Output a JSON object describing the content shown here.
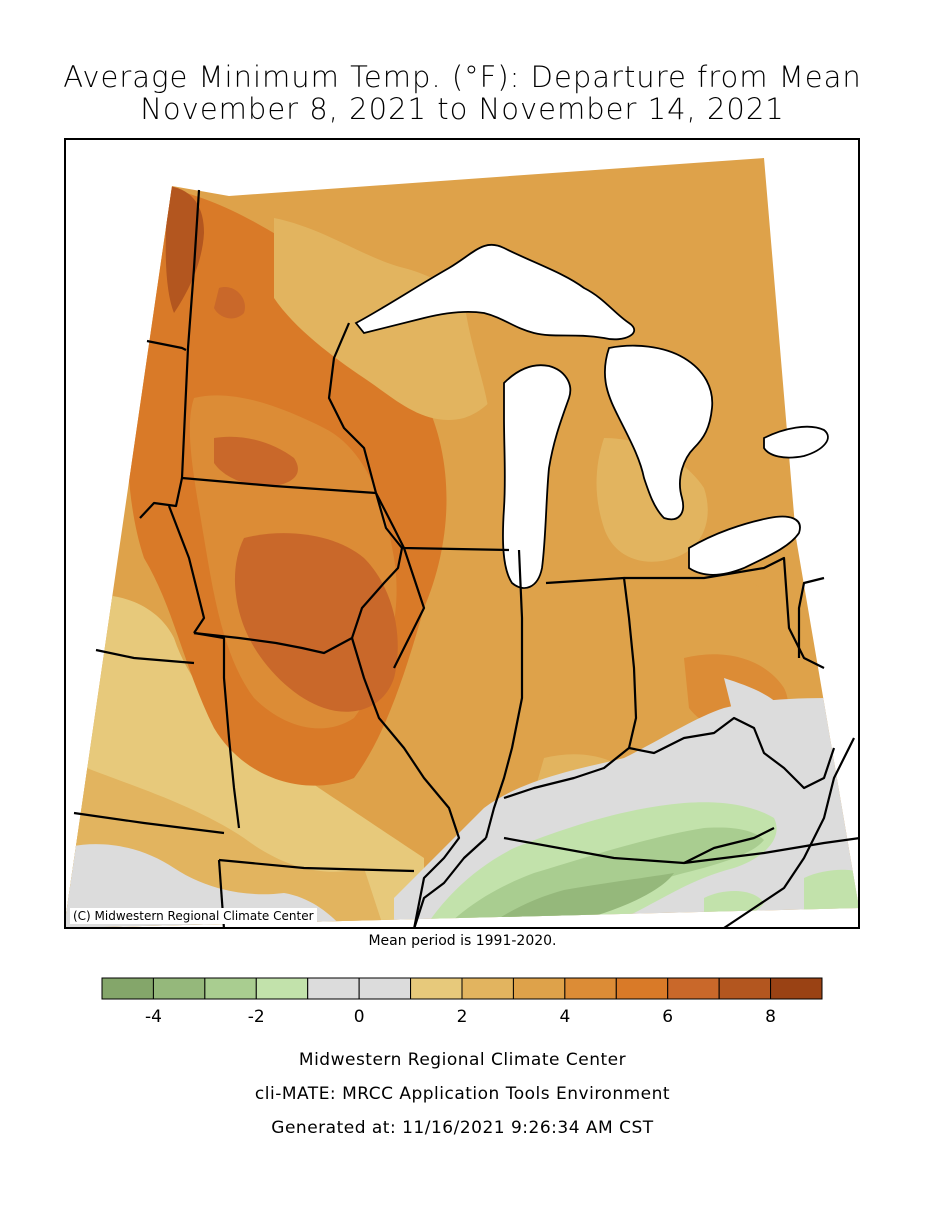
{
  "title_line1": "Average Minimum Temp. (°F): Departure from Mean",
  "title_line2": "November 8, 2021 to November 14, 2021",
  "credit": "(C) Midwestern Regional Climate Center",
  "mean_note": "Mean period is 1991-2020.",
  "legend": {
    "bins": [
      {
        "from": -5,
        "to": -4,
        "color": "#84a66a"
      },
      {
        "from": -4,
        "to": -3,
        "color": "#95b87b"
      },
      {
        "from": -3,
        "to": -2,
        "color": "#a9cd90"
      },
      {
        "from": -2,
        "to": -1,
        "color": "#c2e2ab"
      },
      {
        "from": -1,
        "to": 0,
        "color": "#dcdcdc"
      },
      {
        "from": 0,
        "to": 1,
        "color": "#dcdcdc"
      },
      {
        "from": 1,
        "to": 2,
        "color": "#e7c97b"
      },
      {
        "from": 2,
        "to": 3,
        "color": "#e2b45f"
      },
      {
        "from": 3,
        "to": 4,
        "color": "#dea24a"
      },
      {
        "from": 4,
        "to": 5,
        "color": "#dc8c36"
      },
      {
        "from": 5,
        "to": 6,
        "color": "#d97a28"
      },
      {
        "from": 6,
        "to": 7,
        "color": "#c9682a"
      },
      {
        "from": 7,
        "to": 8,
        "color": "#b3561f"
      },
      {
        "from": 8,
        "to": 9,
        "color": "#9a4214"
      }
    ],
    "tick_labels": [
      "-4",
      "-2",
      "0",
      "2",
      "4",
      "6",
      "8"
    ]
  },
  "footer": {
    "line1": "Midwestern Regional Climate Center",
    "line2": "cli-MATE: MRCC Application Tools Environment",
    "line3": "Generated at: 11/16/2021 9:26:34 AM CST"
  }
}
